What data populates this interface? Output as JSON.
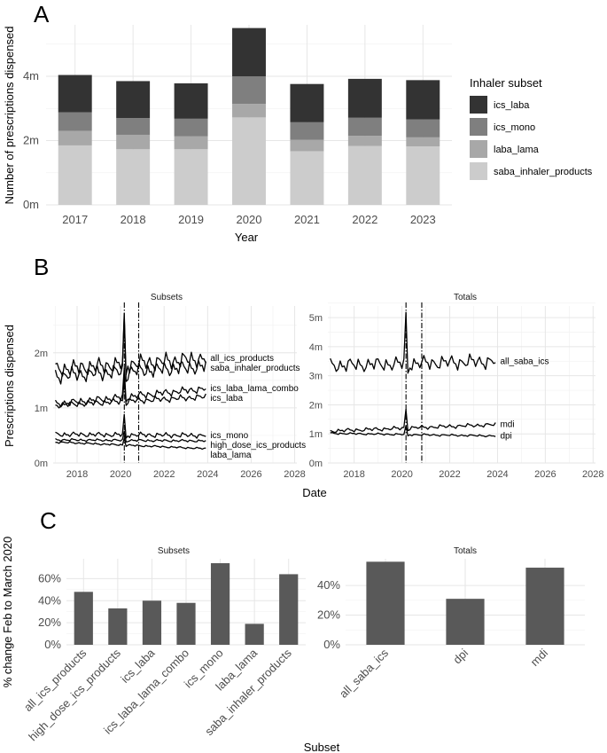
{
  "panel_labels": {
    "a": "A",
    "b": "B",
    "c": "C"
  },
  "chart_data": [
    {
      "panel": "A",
      "type": "bar",
      "stacked": true,
      "xlabel": "Year",
      "ylabel": "Number of prescriptions dispensed",
      "categories": [
        "2017",
        "2018",
        "2019",
        "2020",
        "2021",
        "2022",
        "2023"
      ],
      "series": [
        {
          "name": "saba_inhaler_products",
          "color": "#cccccc",
          "values": [
            1.85,
            1.73,
            1.73,
            2.72,
            1.67,
            1.83,
            1.82
          ]
        },
        {
          "name": "laba_lama",
          "color": "#a8a8a8",
          "values": [
            0.45,
            0.45,
            0.4,
            0.42,
            0.35,
            0.32,
            0.28
          ]
        },
        {
          "name": "ics_mono",
          "color": "#7f7f7f",
          "values": [
            0.58,
            0.52,
            0.55,
            0.86,
            0.55,
            0.56,
            0.56
          ]
        },
        {
          "name": "ics_laba",
          "color": "#333333",
          "values": [
            1.16,
            1.15,
            1.1,
            1.5,
            1.19,
            1.21,
            1.22
          ]
        }
      ],
      "ylim": [
        0,
        5.6
      ],
      "yticks": [
        {
          "value": 0,
          "label": "0m"
        },
        {
          "value": 2,
          "label": "2m"
        },
        {
          "value": 4,
          "label": "4m"
        }
      ],
      "legend": {
        "title": "Inhaler subset",
        "position": "right",
        "order": [
          "ics_laba",
          "ics_mono",
          "laba_lama",
          "saba_inhaler_products"
        ]
      }
    },
    {
      "panel": "B",
      "type": "line",
      "xlabel": "Date",
      "ylabel": "Prescriptions dispensed",
      "xlim": [
        2016.9,
        2028.1
      ],
      "xticks": [
        2018,
        2020,
        2022,
        2024,
        2026,
        2028
      ],
      "vlines": [
        2020.17,
        2020.83
      ],
      "facets": [
        {
          "strip": "Subsets",
          "ylim": [
            0,
            2.85
          ],
          "yticks": [
            {
              "value": 0,
              "label": "0m"
            },
            {
              "value": 1,
              "label": "1m"
            },
            {
              "value": 2,
              "label": "2m"
            }
          ],
          "series": [
            {
              "name": "all_ics_products",
              "start": 1.7,
              "end": 1.9,
              "amp": 0.13,
              "spike": 2.72,
              "phase": 0.3
            },
            {
              "name": "saba_inhaler_products",
              "start": 1.58,
              "end": 1.75,
              "amp": 0.12,
              "spike": 2.65,
              "phase": 1.4
            },
            {
              "name": "ics_laba_lama_combo",
              "start": 1.07,
              "end": 1.35,
              "amp": 0.06,
              "spike": 1.72,
              "phase": 0.8
            },
            {
              "name": "ics_laba",
              "start": 1.05,
              "end": 1.2,
              "amp": 0.05,
              "spike": 1.52,
              "phase": 2.1
            },
            {
              "name": "ics_mono",
              "start": 0.52,
              "end": 0.5,
              "amp": 0.04,
              "spike": 0.88,
              "phase": 0.5
            },
            {
              "name": "high_dose_ics_products",
              "start": 0.42,
              "end": 0.4,
              "amp": 0.02,
              "spike": 0.58,
              "phase": 1.1
            },
            {
              "name": "laba_lama",
              "start": 0.38,
              "end": 0.26,
              "amp": 0.015,
              "spike": 0.45,
              "phase": 2.6
            }
          ]
        },
        {
          "strip": "Totals",
          "ylim": [
            0,
            5.4
          ],
          "yticks": [
            {
              "value": 0,
              "label": "0m"
            },
            {
              "value": 1,
              "label": "1m"
            },
            {
              "value": 2,
              "label": "2m"
            },
            {
              "value": 3,
              "label": "3m"
            },
            {
              "value": 4,
              "label": "4m"
            },
            {
              "value": 5,
              "label": "5m"
            }
          ],
          "series": [
            {
              "name": "all_saba_ics",
              "start": 3.35,
              "end": 3.5,
              "amp": 0.22,
              "spike": 5.18,
              "phase": 0.7
            },
            {
              "name": "mdi",
              "start": 1.1,
              "end": 1.32,
              "amp": 0.06,
              "spike": 1.85,
              "phase": 1.9
            },
            {
              "name": "dpi",
              "start": 1.02,
              "end": 0.93,
              "amp": 0.03,
              "spike": 1.28,
              "phase": 0.2
            }
          ]
        }
      ]
    },
    {
      "panel": "C",
      "type": "bar",
      "xlabel": "Subset",
      "ylabel": "% change Feb to March 2020",
      "bar_color": "#595959",
      "facets": [
        {
          "strip": "Subsets",
          "categories": [
            "all_ics_products",
            "high_dose_ics_products",
            "ics_laba",
            "ics_laba_lama_combo",
            "ics_mono",
            "laba_lama",
            "saba_inhaler_products"
          ],
          "values": [
            48,
            33,
            40,
            38,
            74,
            19,
            64
          ],
          "ylim": [
            0,
            78
          ],
          "yticks": [
            {
              "value": 0,
              "label": "0%"
            },
            {
              "value": 20,
              "label": "20%"
            },
            {
              "value": 40,
              "label": "40%"
            },
            {
              "value": 60,
              "label": "60%"
            }
          ]
        },
        {
          "strip": "Totals",
          "categories": [
            "all_saba_ics",
            "dpi",
            "mdi"
          ],
          "values": [
            56,
            31,
            52
          ],
          "ylim": [
            0,
            58
          ],
          "yticks": [
            {
              "value": 0,
              "label": "0%"
            },
            {
              "value": 20,
              "label": "20%"
            },
            {
              "value": 40,
              "label": "40%"
            }
          ]
        }
      ]
    }
  ]
}
